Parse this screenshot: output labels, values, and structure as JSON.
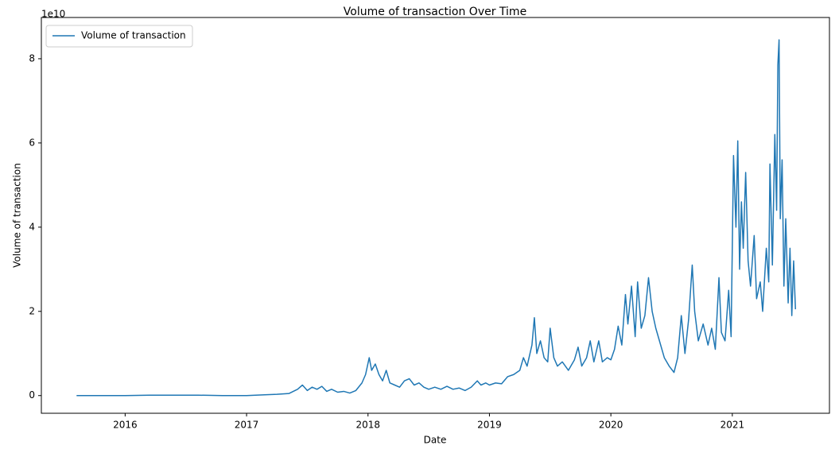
{
  "chart_data": {
    "type": "line",
    "title": "Volume of transaction Over Time",
    "x_label": "Date",
    "y_label": "Volume of transaction",
    "y_offset_label": "1e10",
    "legend": "upper left",
    "grid": false,
    "xlim": [
      2015.31,
      2021.8
    ],
    "xticks": [
      2016,
      2017,
      2018,
      2019,
      2020,
      2021
    ],
    "ylim": [
      -0.42,
      8.98
    ],
    "yticks": [
      0,
      2,
      4,
      6,
      8
    ],
    "x": [
      2015.6,
      2015.8,
      2016.0,
      2016.2,
      2016.4,
      2016.6,
      2016.8,
      2017.0,
      2017.15,
      2017.25,
      2017.35,
      2017.42,
      2017.46,
      2017.5,
      2017.54,
      2017.58,
      2017.62,
      2017.66,
      2017.7,
      2017.75,
      2017.8,
      2017.85,
      2017.9,
      2017.95,
      2017.98,
      2018.01,
      2018.03,
      2018.06,
      2018.09,
      2018.12,
      2018.15,
      2018.18,
      2018.22,
      2018.26,
      2018.3,
      2018.34,
      2018.38,
      2018.42,
      2018.46,
      2018.5,
      2018.55,
      2018.6,
      2018.65,
      2018.7,
      2018.75,
      2018.8,
      2018.85,
      2018.9,
      2018.93,
      2018.97,
      2019.0,
      2019.05,
      2019.1,
      2019.15,
      2019.2,
      2019.25,
      2019.28,
      2019.31,
      2019.35,
      2019.37,
      2019.39,
      2019.42,
      2019.45,
      2019.48,
      2019.5,
      2019.53,
      2019.56,
      2019.6,
      2019.65,
      2019.7,
      2019.73,
      2019.76,
      2019.8,
      2019.83,
      2019.86,
      2019.9,
      2019.93,
      2019.97,
      2020.0,
      2020.03,
      2020.06,
      2020.09,
      2020.12,
      2020.14,
      2020.17,
      2020.2,
      2020.22,
      2020.25,
      2020.28,
      2020.31,
      2020.34,
      2020.37,
      2020.4,
      2020.44,
      2020.48,
      2020.52,
      2020.55,
      2020.58,
      2020.61,
      2020.64,
      2020.67,
      2020.69,
      2020.72,
      2020.76,
      2020.8,
      2020.83,
      2020.86,
      2020.89,
      2020.91,
      2020.94,
      2020.97,
      2020.99,
      2021.01,
      2021.03,
      2021.045,
      2021.06,
      2021.075,
      2021.09,
      2021.11,
      2021.13,
      2021.15,
      2021.18,
      2021.2,
      2021.23,
      2021.25,
      2021.28,
      2021.3,
      2021.31,
      2021.33,
      2021.35,
      2021.365,
      2021.375,
      2021.385,
      2021.395,
      2021.41,
      2021.425,
      2021.44,
      2021.46,
      2021.475,
      2021.49,
      2021.505,
      2021.52
    ],
    "series": [
      {
        "name": "Volume of transaction",
        "color": "#1f77b4",
        "values": [
          0.0,
          0.0,
          0.0,
          0.01,
          0.01,
          0.01,
          0.0,
          0.0,
          0.02,
          0.03,
          0.05,
          0.15,
          0.25,
          0.12,
          0.2,
          0.15,
          0.22,
          0.1,
          0.15,
          0.08,
          0.1,
          0.06,
          0.12,
          0.3,
          0.5,
          0.9,
          0.6,
          0.75,
          0.5,
          0.35,
          0.6,
          0.3,
          0.25,
          0.2,
          0.35,
          0.4,
          0.25,
          0.3,
          0.2,
          0.15,
          0.2,
          0.15,
          0.22,
          0.15,
          0.18,
          0.12,
          0.2,
          0.35,
          0.25,
          0.3,
          0.25,
          0.3,
          0.28,
          0.45,
          0.5,
          0.6,
          0.9,
          0.7,
          1.2,
          1.85,
          1.0,
          1.3,
          0.9,
          0.8,
          1.6,
          0.9,
          0.7,
          0.8,
          0.6,
          0.85,
          1.15,
          0.7,
          0.9,
          1.3,
          0.8,
          1.3,
          0.8,
          0.9,
          0.85,
          1.1,
          1.65,
          1.2,
          2.4,
          1.7,
          2.6,
          1.4,
          2.7,
          1.6,
          1.9,
          2.8,
          2.0,
          1.6,
          1.3,
          0.9,
          0.7,
          0.55,
          0.9,
          1.9,
          1.0,
          1.8,
          3.1,
          2.0,
          1.3,
          1.7,
          1.2,
          1.6,
          1.1,
          2.8,
          1.5,
          1.3,
          2.5,
          1.4,
          5.7,
          4.0,
          6.05,
          3.0,
          4.6,
          3.5,
          5.3,
          3.2,
          2.6,
          3.8,
          2.3,
          2.7,
          2.0,
          3.5,
          2.7,
          5.5,
          3.1,
          6.2,
          4.4,
          7.85,
          8.45,
          4.2,
          5.6,
          2.6,
          4.2,
          2.2,
          3.5,
          1.9,
          3.2,
          2.05
        ]
      }
    ]
  }
}
